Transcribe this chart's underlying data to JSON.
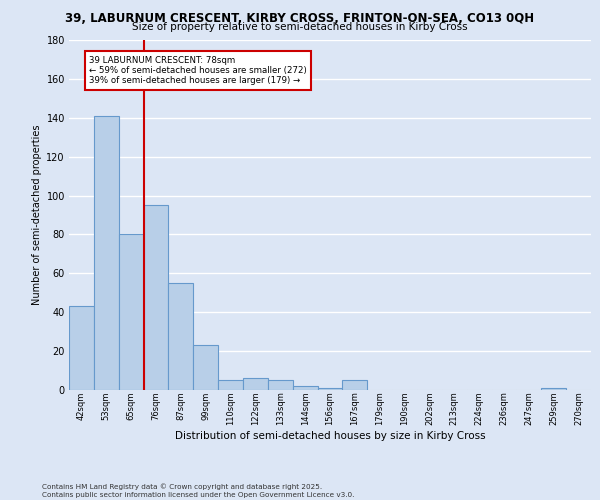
{
  "title_line1": "39, LABURNUM CRESCENT, KIRBY CROSS, FRINTON-ON-SEA, CO13 0QH",
  "title_line2": "Size of property relative to semi-detached houses in Kirby Cross",
  "xlabel": "Distribution of semi-detached houses by size in Kirby Cross",
  "ylabel": "Number of semi-detached properties",
  "categories": [
    "42sqm",
    "53sqm",
    "65sqm",
    "76sqm",
    "87sqm",
    "99sqm",
    "110sqm",
    "122sqm",
    "133sqm",
    "144sqm",
    "156sqm",
    "167sqm",
    "179sqm",
    "190sqm",
    "202sqm",
    "213sqm",
    "224sqm",
    "236sqm",
    "247sqm",
    "259sqm",
    "270sqm"
  ],
  "values": [
    43,
    141,
    80,
    95,
    55,
    23,
    5,
    6,
    5,
    2,
    1,
    5,
    0,
    0,
    0,
    0,
    0,
    0,
    0,
    1,
    0
  ],
  "bar_color": "#b8cfe8",
  "bar_edge_color": "#6699cc",
  "vline_index": 2.5,
  "annotation_title": "39 LABURNUM CRESCENT: 78sqm",
  "annotation_line2": "← 59% of semi-detached houses are smaller (272)",
  "annotation_line3": "39% of semi-detached houses are larger (179) →",
  "vline_color": "#cc0000",
  "annotation_box_color": "#cc0000",
  "ylim": [
    0,
    180
  ],
  "yticks": [
    0,
    20,
    40,
    60,
    80,
    100,
    120,
    140,
    160,
    180
  ],
  "background_color": "#dce6f5",
  "grid_color": "#ffffff",
  "footer_line1": "Contains HM Land Registry data © Crown copyright and database right 2025.",
  "footer_line2": "Contains public sector information licensed under the Open Government Licence v3.0."
}
